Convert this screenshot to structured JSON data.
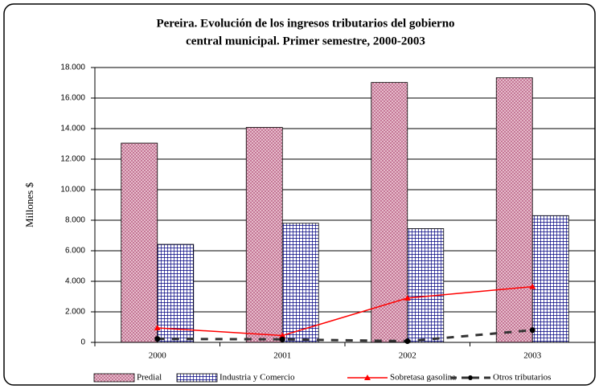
{
  "chart_data": {
    "type": "bar-line",
    "title": [
      "Pereira. Evolución de los ingresos tributarios del gobierno",
      "central municipal. Primer semestre, 2000-2003"
    ],
    "y_label": "Millones $",
    "categories": [
      "2000",
      "2001",
      "2002",
      "2003"
    ],
    "series": [
      {
        "name": "Predial",
        "kind": "bar",
        "color": "#c07090",
        "values": [
          13050,
          14080,
          17020,
          17330
        ]
      },
      {
        "name": "Industria y Comercio",
        "kind": "bar",
        "color": "#000080",
        "values": [
          6420,
          7800,
          7450,
          8300
        ]
      },
      {
        "name": "Sobretasa gasolina",
        "kind": "line",
        "color": "#ff0000",
        "values": [
          950,
          450,
          2900,
          3650
        ]
      },
      {
        "name": "Otros tributarios",
        "kind": "dashed-line",
        "color": "#333333",
        "values": [
          230,
          200,
          80,
          800
        ]
      }
    ],
    "ylim": [
      0,
      18000
    ],
    "yticks": [
      0,
      {
        "value": 2000,
        "label": "2.000"
      },
      {
        "value": 4000,
        "label": "4.000"
      },
      {
        "value": 6000,
        "label": "6.000"
      },
      {
        "value": 8000,
        "label": "8.000"
      },
      {
        "value": 10000,
        "label": "10.000"
      },
      {
        "value": 12000,
        "label": "12.000"
      },
      {
        "value": 14000,
        "label": "14.000"
      },
      {
        "value": 16000,
        "label": "16.000"
      },
      {
        "value": 18000,
        "label": "18.000"
      }
    ],
    "grid": true
  }
}
